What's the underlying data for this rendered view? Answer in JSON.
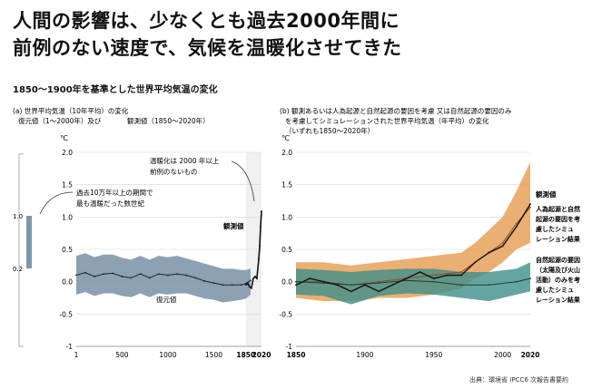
{
  "title_line1": "人間の影響は、少なくとも過去2000年間に",
  "title_line2": "前例のない速度で、気候を温暖化させてきた",
  "subtitle": "1850〜1900年を基準とした世界平均気温の変化",
  "source": "出典：環境省 IPCC6 次報告書要約",
  "colors": {
    "band": "#7f97ab",
    "obs": "#111111",
    "human": "#e8a05a",
    "natural": "#3f8f8a",
    "panel_bg": "#f0f0f0"
  },
  "chart_data": [
    {
      "type": "line",
      "panel_label_a": "(a) 世界平均気温（10年平均）の変化",
      "panel_label_b": "復元値（1〜2000年）及び",
      "panel_label_c": "観測値（1850〜2020年）",
      "unit": "℃",
      "xlim": [
        1,
        2020
      ],
      "ylim": [
        -1.0,
        2.0
      ],
      "x_ticks": [
        "1",
        "500",
        "1000",
        "1500",
        "1850",
        "2020"
      ],
      "y_ticks": [
        "2.0",
        "1.5",
        "1.0",
        "0.5",
        "0.0",
        "-0.5",
        "-1"
      ],
      "grid": true,
      "annotation_warm": "温暖化は2000年以上前例のないもの",
      "annotation_warm_l1": "温暖化は 2000 年以上",
      "annotation_warm_l2": "前例のないもの",
      "annotation_past_l1": "過去10万年以上の期間で",
      "annotation_past_l2": "最も温暖だった数世紀",
      "side_range_top": "1.0",
      "side_range_bottom": "0.2",
      "label_obs": "観測値",
      "label_recon": "復元値",
      "series": [
        {
          "name": "復元値",
          "x": [
            1,
            100,
            200,
            300,
            400,
            500,
            600,
            700,
            800,
            900,
            1000,
            1100,
            1200,
            1300,
            1400,
            1500,
            1600,
            1700,
            1800,
            1850,
            1900
          ],
          "values": [
            0.1,
            0.14,
            0.08,
            0.12,
            0.13,
            0.08,
            0.06,
            0.12,
            0.06,
            0.12,
            0.1,
            0.12,
            0.1,
            0.06,
            0.01,
            -0.02,
            -0.05,
            -0.05,
            -0.05,
            -0.03,
            0.02
          ],
          "upper": [
            0.4,
            0.44,
            0.38,
            0.42,
            0.42,
            0.37,
            0.34,
            0.4,
            0.34,
            0.4,
            0.38,
            0.4,
            0.36,
            0.32,
            0.28,
            0.24,
            0.2,
            0.2,
            0.18,
            0.18,
            0.2
          ],
          "lower": [
            -0.2,
            -0.16,
            -0.22,
            -0.18,
            -0.18,
            -0.22,
            -0.24,
            -0.18,
            -0.24,
            -0.18,
            -0.2,
            -0.18,
            -0.18,
            -0.22,
            -0.26,
            -0.28,
            -0.32,
            -0.3,
            -0.28,
            -0.26,
            -0.2
          ]
        },
        {
          "name": "観測値",
          "x": [
            1850,
            1870,
            1890,
            1910,
            1930,
            1950,
            1970,
            1990,
            2000,
            2010,
            2020
          ],
          "values": [
            -0.05,
            -0.02,
            -0.08,
            -0.1,
            0.05,
            0.08,
            0.05,
            0.35,
            0.55,
            0.85,
            1.09
          ]
        }
      ]
    },
    {
      "type": "line",
      "panel_label_a": "(b) 観測あるいは人為起源と自然起源の要因を考慮 又は自然起源の要因のみ",
      "panel_label_b": "を考慮してシミュレーションされた世界平均気温（年平均）の変化",
      "panel_label_c": "（いずれも1850〜2020年）",
      "unit": "℃",
      "xlim": [
        1850,
        2020
      ],
      "ylim": [
        -1.0,
        2.0
      ],
      "x_ticks": [
        "1850",
        "1900",
        "1950",
        "2000",
        "2020"
      ],
      "y_ticks": [
        "2.0",
        "1.5",
        "1.0",
        "0.5",
        "0.0",
        "-0.5",
        "-1"
      ],
      "grid": true,
      "legend_obs": "観測値",
      "legend_human_l1": "人為起源と自然",
      "legend_human_l2": "起源の要因を考",
      "legend_human_l3": "慮したシミュ",
      "legend_human_l4": "レーション結果",
      "legend_nat_l1": "自然起源の要因",
      "legend_nat_l2": "（太陽及び火山",
      "legend_nat_l3": "活動）のみを考",
      "legend_nat_l4": "慮したシミュ",
      "legend_nat_l5": "レーション結果",
      "series": [
        {
          "name": "観測値",
          "x": [
            1850,
            1860,
            1870,
            1880,
            1890,
            1900,
            1910,
            1920,
            1930,
            1940,
            1950,
            1960,
            1970,
            1980,
            1990,
            2000,
            2010,
            2020
          ],
          "values": [
            -0.05,
            0.05,
            0.0,
            -0.05,
            -0.15,
            -0.05,
            -0.15,
            -0.05,
            0.05,
            0.15,
            0.05,
            0.1,
            0.1,
            0.3,
            0.45,
            0.55,
            0.85,
            1.2
          ]
        },
        {
          "name": "人為起源と自然起源の要因を考慮したシミュレーション結果",
          "x": [
            1850,
            1870,
            1890,
            1910,
            1930,
            1950,
            1970,
            1980,
            1990,
            2000,
            2010,
            2020
          ],
          "values": [
            0.0,
            0.0,
            -0.05,
            0.0,
            0.05,
            0.1,
            0.15,
            0.3,
            0.45,
            0.6,
            0.9,
            1.15
          ],
          "upper": [
            0.3,
            0.3,
            0.25,
            0.3,
            0.35,
            0.4,
            0.45,
            0.6,
            0.8,
            1.0,
            1.4,
            1.85
          ],
          "lower": [
            -0.25,
            -0.3,
            -0.3,
            -0.25,
            -0.25,
            -0.2,
            -0.1,
            0.05,
            0.15,
            0.3,
            0.5,
            0.6
          ]
        },
        {
          "name": "自然起源の要因（太陽及び火山活動）のみを考慮したシミュレーション結果",
          "x": [
            1850,
            1870,
            1890,
            1910,
            1930,
            1950,
            1970,
            1990,
            2010,
            2020
          ],
          "values": [
            0.0,
            -0.02,
            -0.05,
            -0.02,
            0.02,
            0.0,
            -0.05,
            -0.05,
            0.0,
            0.05
          ],
          "upper": [
            0.2,
            0.18,
            0.15,
            0.18,
            0.2,
            0.2,
            0.15,
            0.15,
            0.2,
            0.3
          ],
          "lower": [
            -0.2,
            -0.22,
            -0.35,
            -0.22,
            -0.18,
            -0.2,
            -0.25,
            -0.3,
            -0.2,
            -0.15
          ]
        }
      ]
    }
  ]
}
